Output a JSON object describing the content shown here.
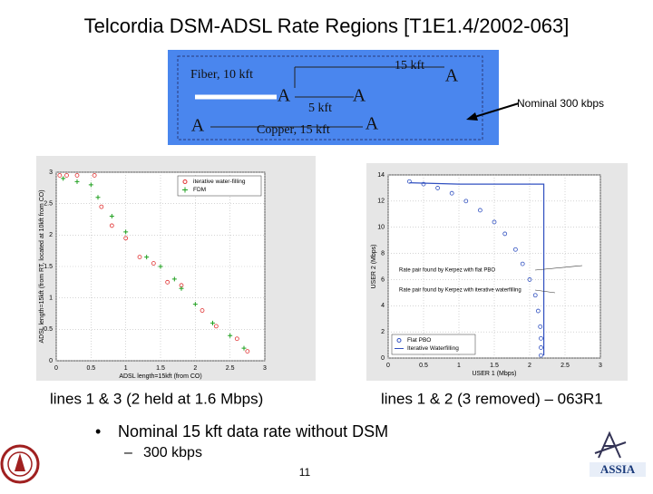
{
  "title": "Telcordia DSM-ADSL Rate Regions [T1E1.4/2002-063]",
  "diagram": {
    "top_length": "15 kft",
    "fiber": "Fiber, 10 kft",
    "remote_length": "5 kft",
    "copper": "Copper, 15 kft",
    "modem_top": "A",
    "modem_rt": "A",
    "modem_rt_end": "A",
    "modem_co": "A",
    "modem_cpe": "A",
    "note": "Nominal 300 kbps"
  },
  "chart_data": [
    {
      "type": "scatter",
      "xlabel": "ADSL length=15kft (from CO)",
      "ylabel": "ADSL length=15kft (from RT, located at 10kft from CO)",
      "xlim": [
        0,
        3
      ],
      "ylim": [
        0,
        3
      ],
      "xticks": [
        0,
        0.5,
        1,
        1.5,
        2,
        2.5,
        3
      ],
      "yticks": [
        0,
        0.5,
        1,
        1.5,
        2,
        2.5,
        3
      ],
      "grid": true,
      "legend": "upper right",
      "series": [
        {
          "name": "iterative water-filling",
          "color": "#e03030",
          "marker": "circle",
          "x": [
            0.05,
            0.15,
            0.3,
            0.55,
            0.65,
            0.8,
            1.0,
            1.2,
            1.4,
            1.6,
            1.8,
            2.1,
            2.3,
            2.6,
            2.75
          ],
          "values": [
            2.95,
            2.95,
            2.95,
            2.95,
            2.45,
            2.15,
            1.95,
            1.65,
            1.55,
            1.25,
            1.2,
            0.8,
            0.55,
            0.35,
            0.15
          ]
        },
        {
          "name": "FDM",
          "color": "#20a020",
          "marker": "plus",
          "x": [
            0.1,
            0.3,
            0.5,
            0.6,
            0.8,
            1.0,
            1.3,
            1.5,
            1.7,
            1.8,
            2.0,
            2.25,
            2.5,
            2.7
          ],
          "values": [
            2.9,
            2.85,
            2.8,
            2.6,
            2.3,
            2.05,
            1.65,
            1.5,
            1.3,
            1.15,
            0.9,
            0.6,
            0.4,
            0.2
          ]
        }
      ]
    },
    {
      "type": "scatter",
      "xlabel": "USER 1 (Mbps)",
      "ylabel": "USER 2 (Mbps)",
      "xlim": [
        0,
        3
      ],
      "ylim": [
        0,
        14
      ],
      "xticks": [
        0,
        0.5,
        1,
        1.5,
        2,
        2.5,
        3
      ],
      "yticks": [
        0,
        2,
        4,
        6,
        8,
        10,
        12,
        14
      ],
      "grid": true,
      "legend": "lower left",
      "annotations": [
        "Rate pair found by Kerpez with flat PBO",
        "Rate pair found by Kerpez with iterative waterfilling"
      ],
      "series": [
        {
          "name": "Flat PBO",
          "color": "#3050c0",
          "marker": "circle",
          "x": [
            0.3,
            0.5,
            0.7,
            0.9,
            1.1,
            1.3,
            1.5,
            1.65,
            1.8,
            1.9,
            2.0,
            2.08,
            2.12,
            2.15,
            2.16,
            2.16,
            2.16
          ],
          "values": [
            13.5,
            13.3,
            13.0,
            12.6,
            12.0,
            11.3,
            10.4,
            9.5,
            8.3,
            7.2,
            6.0,
            4.8,
            3.6,
            2.4,
            1.5,
            0.8,
            0.2
          ]
        },
        {
          "name": "Iterative Waterfilling",
          "color": "#3050c0",
          "marker": "none",
          "x": [
            0.3,
            1.0,
            2.2,
            2.2,
            2.2
          ],
          "values": [
            13.4,
            13.3,
            13.3,
            8.0,
            0.2
          ]
        }
      ]
    }
  ],
  "captions": [
    "lines 1 & 3 (2 held at 1.6 Mbps)",
    "lines 1 & 2 (3 removed) – 063R1"
  ],
  "bullet": "Nominal 15 kft data rate without DSM",
  "sub_bullet": "300 kbps",
  "page_number": "11"
}
